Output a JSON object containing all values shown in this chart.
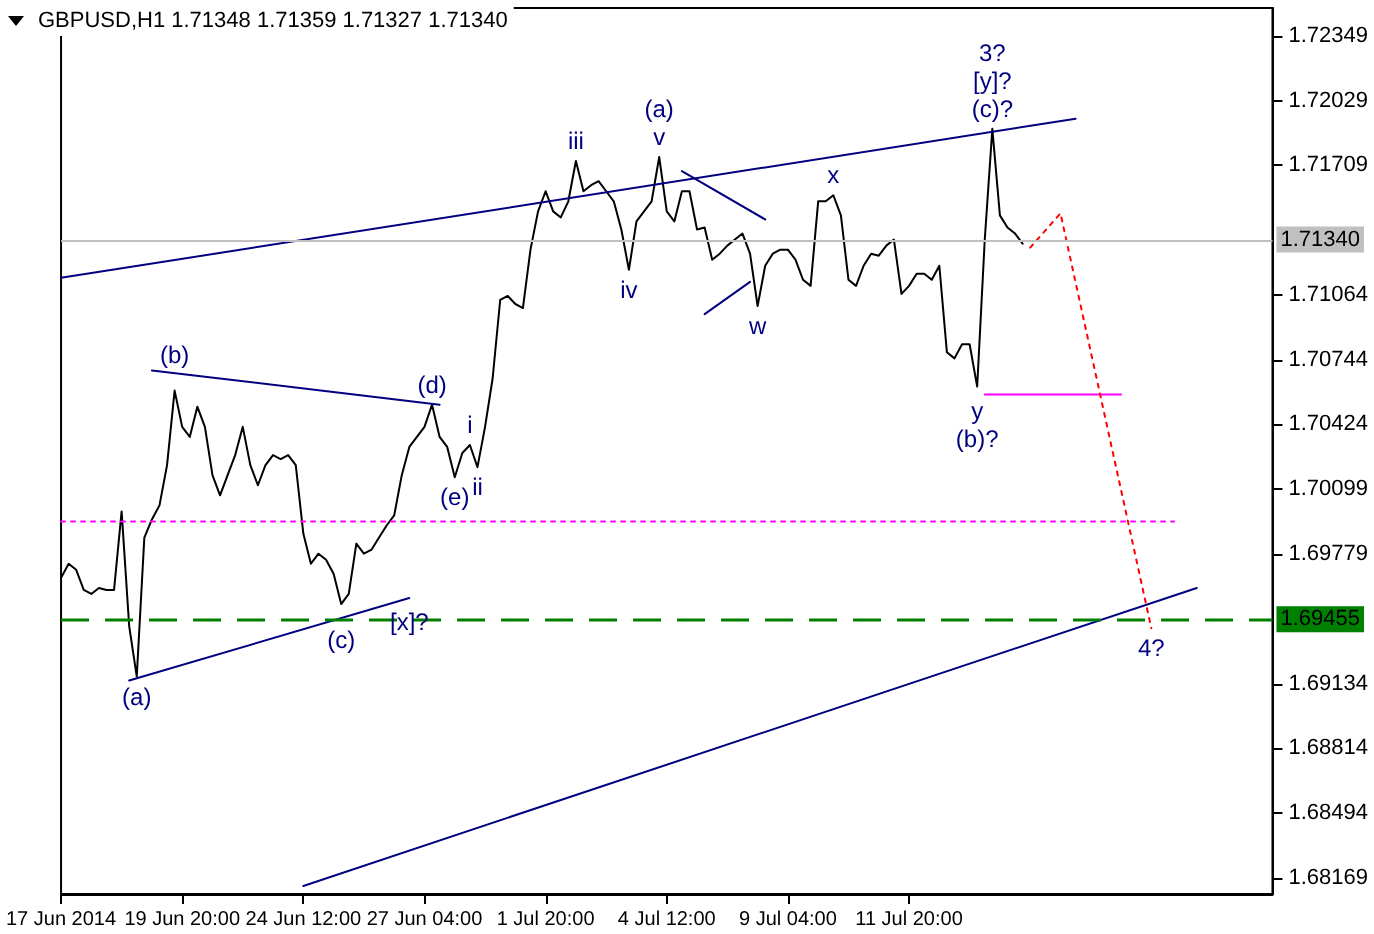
{
  "chart_data": {
    "type": "line",
    "title": "GBPUSD,H1 1.71348 1.71359 1.71327 1.71340",
    "marker": "none",
    "grid": false,
    "categories": [
      "17 Jun 2014",
      null,
      null,
      null,
      null,
      null,
      null,
      null,
      null,
      null,
      null,
      null,
      null,
      null,
      null,
      null,
      "19 Jun 20:00",
      null,
      null,
      null,
      null,
      null,
      null,
      null,
      null,
      null,
      null,
      null,
      null,
      null,
      null,
      null,
      "24 Jun 12:00",
      null,
      null,
      null,
      null,
      null,
      null,
      null,
      null,
      null,
      null,
      null,
      null,
      null,
      null,
      null,
      "27 Jun 04:00",
      null,
      null,
      null,
      null,
      null,
      null,
      null,
      null,
      null,
      null,
      null,
      null,
      null,
      null,
      null,
      "1 Jul 20:00",
      null,
      null,
      null,
      null,
      null,
      null,
      null,
      null,
      null,
      null,
      null,
      null,
      null,
      null,
      null,
      "4 Jul 12:00",
      null,
      null,
      null,
      null,
      null,
      null,
      null,
      null,
      null,
      null,
      null,
      null,
      null,
      null,
      null,
      "9 Jul 04:00",
      null,
      null,
      null,
      null,
      null,
      null,
      null,
      null,
      null,
      null,
      null,
      null,
      null,
      null,
      null,
      "11 Jul 20:00",
      null,
      null,
      null,
      null,
      null,
      null,
      null,
      null,
      null,
      null,
      null,
      null,
      null,
      null,
      null,
      null,
      null,
      null,
      null,
      null,
      null,
      null,
      null,
      null,
      null,
      null,
      null,
      null,
      null,
      null,
      null,
      null,
      null,
      null,
      null,
      null,
      null,
      null,
      null,
      null,
      null,
      null,
      null,
      null,
      null,
      null,
      null,
      null
    ],
    "ylim": [
      1.6809,
      1.7249
    ],
    "yticks": [
      1.72349,
      1.72029,
      1.71709,
      1.71064,
      1.70744,
      1.70424,
      1.70099,
      1.69779,
      1.69134,
      1.68814,
      1.68494,
      1.68169
    ],
    "series": [
      {
        "color": "#000000",
        "line_style": "solid",
        "values": [
          1.6966,
          1.6973,
          1.697,
          1.696,
          1.6958,
          1.6961,
          1.696,
          1.696,
          1.6999,
          1.6942,
          1.6917,
          1.6986,
          1.6995,
          1.7002,
          1.7022,
          1.7059,
          1.7041,
          1.7036,
          1.7051,
          1.7041,
          1.7017,
          1.7007,
          1.7017,
          1.7027,
          1.7041,
          1.7022,
          1.7012,
          1.7022,
          1.7027,
          1.7025,
          1.7027,
          1.7022,
          1.6988,
          1.6973,
          1.6978,
          1.6975,
          1.6968,
          1.6953,
          1.6958,
          1.6983,
          1.6978,
          1.698,
          1.6986,
          1.6992,
          1.6997,
          1.7017,
          1.7031,
          1.7036,
          1.7041,
          1.7052,
          1.7036,
          1.7031,
          1.7016,
          1.7028,
          1.7032,
          1.7021,
          1.7041,
          1.7065,
          1.7104,
          1.7106,
          1.7102,
          1.71,
          1.7129,
          1.7148,
          1.7158,
          1.7148,
          1.7145,
          1.7153,
          1.7173,
          1.7158,
          1.7161,
          1.7163,
          1.7158,
          1.7153,
          1.7139,
          1.7119,
          1.7143,
          1.7148,
          1.7153,
          1.7175,
          1.7148,
          1.7143,
          1.7158,
          1.7158,
          1.7139,
          1.714,
          1.7124,
          1.7127,
          1.7131,
          1.7134,
          1.7137,
          1.7127,
          1.7101,
          1.7121,
          1.7127,
          1.7129,
          1.7129,
          1.7124,
          1.7114,
          1.7111,
          1.7153,
          1.7153,
          1.7156,
          1.7146,
          1.7114,
          1.7111,
          1.7121,
          1.7127,
          1.7126,
          1.7131,
          1.7134,
          1.7107,
          1.7111,
          1.7117,
          1.7117,
          1.7114,
          1.7121,
          1.7078,
          1.7075,
          1.7082,
          1.7082,
          1.7061,
          1.7134,
          1.7189,
          1.7146,
          1.714,
          1.7137,
          1.7132,
          null,
          null,
          null,
          null,
          null,
          null,
          null,
          null,
          null,
          null,
          null,
          null,
          null,
          null,
          null,
          null,
          null,
          null,
          null,
          null,
          null,
          null,
          null,
          null,
          null,
          null,
          null,
          null,
          null,
          null,
          null,
          null,
          null
        ]
      },
      {
        "color": "#000080",
        "line_style": "solid",
        "values": [
          1.7115,
          null,
          null,
          null,
          null,
          null,
          null,
          null,
          null,
          null,
          null,
          null,
          null,
          null,
          null,
          null,
          null,
          null,
          null,
          null,
          null,
          null,
          null,
          null,
          null,
          null,
          null,
          null,
          null,
          null,
          null,
          null,
          null,
          null,
          null,
          null,
          null,
          null,
          null,
          null,
          null,
          null,
          null,
          null,
          null,
          null,
          null,
          null,
          null,
          null,
          null,
          null,
          null,
          null,
          null,
          null,
          null,
          null,
          null,
          null,
          null,
          null,
          null,
          null,
          null,
          null,
          null,
          null,
          null,
          null,
          null,
          null,
          null,
          null,
          null,
          null,
          null,
          null,
          null,
          null,
          null,
          null,
          null,
          null,
          null,
          null,
          null,
          null,
          null,
          null,
          null,
          null,
          null,
          null,
          null,
          null,
          null,
          null,
          null,
          null,
          null,
          null,
          null,
          null,
          null,
          null,
          null,
          null,
          null,
          null,
          null,
          null,
          null,
          null,
          null,
          null,
          null,
          null,
          null,
          null,
          null,
          null,
          null,
          null,
          null,
          null,
          null,
          null,
          null,
          null,
          null,
          null,
          null,
          null,
          1.7194,
          null,
          null,
          null,
          null,
          null,
          null,
          null,
          null,
          null,
          null,
          null,
          null,
          null,
          null,
          null,
          null,
          null,
          null,
          null,
          null,
          null,
          null,
          null,
          null,
          null,
          null
        ]
      },
      {
        "color": "#000080",
        "line_style": "solid",
        "values": [
          null,
          null,
          null,
          null,
          null,
          null,
          null,
          null,
          null,
          null,
          null,
          null,
          null,
          null,
          null,
          null,
          null,
          null,
          null,
          null,
          null,
          null,
          null,
          null,
          null,
          null,
          null,
          null,
          null,
          null,
          null,
          null,
          1.6813,
          null,
          null,
          null,
          null,
          null,
          null,
          null,
          null,
          null,
          null,
          null,
          null,
          null,
          null,
          null,
          null,
          null,
          null,
          null,
          null,
          null,
          null,
          null,
          null,
          null,
          null,
          null,
          null,
          null,
          null,
          null,
          null,
          null,
          null,
          null,
          null,
          null,
          null,
          null,
          null,
          null,
          null,
          null,
          null,
          null,
          null,
          null,
          null,
          null,
          null,
          null,
          null,
          null,
          null,
          null,
          null,
          null,
          null,
          null,
          null,
          null,
          null,
          null,
          null,
          null,
          null,
          null,
          null,
          null,
          null,
          null,
          null,
          null,
          null,
          null,
          null,
          null,
          null,
          null,
          null,
          null,
          null,
          null,
          null,
          null,
          null,
          null,
          null,
          null,
          null,
          null,
          null,
          null,
          null,
          null,
          null,
          null,
          null,
          null,
          null,
          null,
          null,
          null,
          null,
          null,
          null,
          null,
          null,
          null,
          null,
          null,
          null,
          null,
          null,
          null,
          null,
          null,
          1.6961,
          null,
          null,
          null,
          null,
          null,
          null,
          null,
          null,
          null,
          null
        ]
      },
      {
        "color": "#000080",
        "line_style": "solid",
        "values": [
          null,
          null,
          null,
          null,
          null,
          null,
          null,
          null,
          null,
          null,
          null,
          null,
          1.7069,
          null,
          null,
          null,
          null,
          null,
          null,
          null,
          null,
          null,
          null,
          null,
          null,
          null,
          null,
          null,
          null,
          null,
          null,
          null,
          null,
          null,
          null,
          null,
          null,
          null,
          null,
          null,
          null,
          null,
          null,
          null,
          null,
          null,
          null,
          null,
          null,
          null,
          1.7052,
          null,
          null,
          null,
          null,
          null,
          null,
          null,
          null,
          null,
          null,
          null,
          null,
          null,
          null,
          null,
          null,
          null,
          null,
          null,
          null,
          null,
          null,
          null,
          null,
          null,
          null,
          null,
          null,
          null,
          null,
          null,
          null,
          null,
          null,
          null,
          null,
          null,
          null,
          null,
          null,
          null,
          null,
          null,
          null,
          null,
          null,
          null,
          null,
          null,
          null,
          null,
          null,
          null,
          null,
          null,
          null,
          null,
          null,
          null,
          null,
          null,
          null,
          null,
          null,
          null,
          null,
          null,
          null,
          null,
          null,
          null,
          null,
          null,
          null,
          null,
          null,
          null,
          null,
          null,
          null,
          null,
          null,
          null,
          null,
          null,
          null,
          null,
          null,
          null,
          null,
          null,
          null,
          null,
          null,
          null,
          null,
          null,
          null,
          null,
          null,
          null,
          null,
          null,
          null,
          null,
          null,
          null,
          null,
          null,
          null
        ]
      },
      {
        "color": "#000080",
        "line_style": "solid",
        "values": [
          null,
          null,
          null,
          null,
          null,
          null,
          null,
          null,
          null,
          1.6915,
          null,
          null,
          null,
          null,
          null,
          null,
          null,
          null,
          null,
          null,
          null,
          null,
          null,
          null,
          null,
          null,
          null,
          null,
          null,
          null,
          null,
          null,
          null,
          null,
          null,
          null,
          null,
          null,
          null,
          null,
          null,
          null,
          null,
          null,
          null,
          null,
          1.6956,
          null,
          null,
          null,
          null,
          null,
          null,
          null,
          null,
          null,
          null,
          null,
          null,
          null,
          null,
          null,
          null,
          null,
          null,
          null,
          null,
          null,
          null,
          null,
          null,
          null,
          null,
          null,
          null,
          null,
          null,
          null,
          null,
          null,
          null,
          null,
          null,
          null,
          null,
          null,
          null,
          null,
          null,
          null,
          null,
          null,
          null,
          null,
          null,
          null,
          null,
          null,
          null,
          null,
          null,
          null,
          null,
          null,
          null,
          null,
          null,
          null,
          null,
          null,
          null,
          null,
          null,
          null,
          null,
          null,
          null,
          null,
          null,
          null,
          null,
          null,
          null,
          null,
          null,
          null,
          null,
          null,
          null,
          null,
          null,
          null,
          null,
          null,
          null,
          null,
          null,
          null,
          null,
          null,
          null,
          null,
          null,
          null,
          null,
          null,
          null,
          null,
          null,
          null,
          null,
          null,
          null,
          null,
          null,
          null,
          null,
          null,
          null,
          null,
          null
        ]
      },
      {
        "color": "#000080",
        "line_style": "solid",
        "values": [
          null,
          null,
          null,
          null,
          null,
          null,
          null,
          null,
          null,
          null,
          null,
          null,
          null,
          null,
          null,
          null,
          null,
          null,
          null,
          null,
          null,
          null,
          null,
          null,
          null,
          null,
          null,
          null,
          null,
          null,
          null,
          null,
          null,
          null,
          null,
          null,
          null,
          null,
          null,
          null,
          null,
          null,
          null,
          null,
          null,
          null,
          null,
          null,
          null,
          null,
          null,
          null,
          null,
          null,
          null,
          null,
          null,
          null,
          null,
          null,
          null,
          null,
          null,
          null,
          null,
          null,
          null,
          null,
          null,
          null,
          null,
          null,
          null,
          null,
          null,
          null,
          null,
          null,
          null,
          null,
          null,
          null,
          1.7168,
          null,
          null,
          null,
          null,
          null,
          null,
          null,
          null,
          null,
          null,
          1.7144,
          null,
          null,
          null,
          null,
          null,
          null,
          null,
          null,
          null,
          null,
          null,
          null,
          null,
          null,
          null,
          null,
          null,
          null,
          null,
          null,
          null,
          null,
          null,
          null,
          null,
          null,
          null,
          null,
          null,
          null,
          null,
          null,
          null,
          null,
          null,
          null,
          null,
          null,
          null,
          null,
          null,
          null,
          null,
          null,
          null,
          null,
          null,
          null,
          null,
          null,
          null,
          null,
          null,
          null,
          null,
          null,
          null,
          null,
          null,
          null,
          null,
          null,
          null,
          null,
          null,
          null,
          null
        ]
      },
      {
        "color": "#000080",
        "line_style": "solid",
        "values": [
          null,
          null,
          null,
          null,
          null,
          null,
          null,
          null,
          null,
          null,
          null,
          null,
          null,
          null,
          null,
          null,
          null,
          null,
          null,
          null,
          null,
          null,
          null,
          null,
          null,
          null,
          null,
          null,
          null,
          null,
          null,
          null,
          null,
          null,
          null,
          null,
          null,
          null,
          null,
          null,
          null,
          null,
          null,
          null,
          null,
          null,
          null,
          null,
          null,
          null,
          null,
          null,
          null,
          null,
          null,
          null,
          null,
          null,
          null,
          null,
          null,
          null,
          null,
          null,
          null,
          null,
          null,
          null,
          null,
          null,
          null,
          null,
          null,
          null,
          null,
          null,
          null,
          null,
          null,
          null,
          null,
          null,
          null,
          null,
          null,
          1.7097,
          null,
          null,
          null,
          null,
          null,
          1.7113,
          null,
          null,
          null,
          null,
          null,
          null,
          null,
          null,
          null,
          null,
          null,
          null,
          null,
          null,
          null,
          null,
          null,
          null,
          null,
          null,
          null,
          null,
          null,
          null,
          null,
          null,
          null,
          null,
          null,
          null,
          null,
          null,
          null,
          null,
          null,
          null,
          null,
          null,
          null,
          null,
          null,
          null,
          null,
          null,
          null,
          null,
          null,
          null,
          null,
          null,
          null,
          null,
          null,
          null,
          null,
          null,
          null,
          null,
          null,
          null,
          null,
          null,
          null,
          null,
          null,
          null,
          null,
          null,
          null
        ]
      },
      {
        "color": "#ff00ff",
        "line_style": "solid",
        "values": [
          null,
          null,
          null,
          null,
          null,
          null,
          null,
          null,
          null,
          null,
          null,
          null,
          null,
          null,
          null,
          null,
          null,
          null,
          null,
          null,
          null,
          null,
          null,
          null,
          null,
          null,
          null,
          null,
          null,
          null,
          null,
          null,
          null,
          null,
          null,
          null,
          null,
          null,
          null,
          null,
          null,
          null,
          null,
          null,
          null,
          null,
          null,
          null,
          null,
          null,
          null,
          null,
          null,
          null,
          null,
          null,
          null,
          null,
          null,
          null,
          null,
          null,
          null,
          null,
          null,
          null,
          null,
          null,
          null,
          null,
          null,
          null,
          null,
          null,
          null,
          null,
          null,
          null,
          null,
          null,
          null,
          null,
          null,
          null,
          null,
          null,
          null,
          null,
          null,
          null,
          null,
          null,
          null,
          null,
          null,
          null,
          null,
          null,
          null,
          null,
          null,
          null,
          null,
          null,
          null,
          null,
          null,
          null,
          null,
          null,
          null,
          null,
          null,
          null,
          null,
          null,
          null,
          null,
          null,
          null,
          null,
          null,
          1.7057,
          null,
          null,
          null,
          null,
          null,
          null,
          null,
          null,
          null,
          null,
          null,
          null,
          null,
          null,
          null,
          null,
          null,
          1.7057,
          null,
          null,
          null,
          null,
          null,
          null,
          null,
          null,
          null,
          null,
          null,
          null,
          null,
          null,
          null,
          null,
          null,
          null,
          null,
          null
        ]
      },
      {
        "color": "#ff00ff",
        "line_style": "dotted",
        "values": [
          1.6994,
          null,
          null,
          null,
          null,
          null,
          null,
          null,
          null,
          null,
          null,
          null,
          null,
          null,
          null,
          null,
          null,
          null,
          null,
          null,
          null,
          null,
          null,
          null,
          null,
          null,
          null,
          null,
          null,
          null,
          null,
          null,
          null,
          null,
          null,
          null,
          null,
          null,
          null,
          null,
          null,
          null,
          null,
          null,
          null,
          null,
          null,
          null,
          null,
          null,
          null,
          null,
          null,
          null,
          null,
          null,
          null,
          null,
          null,
          null,
          null,
          null,
          null,
          null,
          null,
          null,
          null,
          null,
          null,
          null,
          null,
          null,
          null,
          null,
          null,
          null,
          null,
          null,
          null,
          null,
          null,
          null,
          null,
          null,
          null,
          null,
          null,
          null,
          null,
          null,
          null,
          null,
          null,
          null,
          null,
          null,
          null,
          null,
          null,
          null,
          null,
          null,
          null,
          null,
          null,
          null,
          null,
          null,
          null,
          null,
          null,
          null,
          null,
          null,
          null,
          null,
          null,
          null,
          null,
          null,
          null,
          null,
          null,
          null,
          null,
          null,
          null,
          null,
          null,
          null,
          null,
          null,
          null,
          null,
          null,
          null,
          null,
          null,
          null,
          null,
          null,
          null,
          null,
          null,
          null,
          null,
          null,
          1.6994,
          null,
          null,
          null,
          null,
          null,
          null,
          null,
          null,
          null,
          null,
          null,
          null,
          null
        ]
      },
      {
        "color": "#ff0000",
        "line_style": "dotted",
        "values": [
          null,
          null,
          null,
          null,
          null,
          null,
          null,
          null,
          null,
          null,
          null,
          null,
          null,
          null,
          null,
          null,
          null,
          null,
          null,
          null,
          null,
          null,
          null,
          null,
          null,
          null,
          null,
          null,
          null,
          null,
          null,
          null,
          null,
          null,
          null,
          null,
          null,
          null,
          null,
          null,
          null,
          null,
          null,
          null,
          null,
          null,
          null,
          null,
          null,
          null,
          null,
          null,
          null,
          null,
          null,
          null,
          null,
          null,
          null,
          null,
          null,
          null,
          null,
          null,
          null,
          null,
          null,
          null,
          null,
          null,
          null,
          null,
          null,
          null,
          null,
          null,
          null,
          null,
          null,
          null,
          null,
          null,
          null,
          null,
          null,
          null,
          null,
          null,
          null,
          null,
          null,
          null,
          null,
          null,
          null,
          null,
          null,
          null,
          null,
          null,
          null,
          null,
          null,
          null,
          null,
          null,
          null,
          null,
          null,
          null,
          null,
          null,
          null,
          null,
          null,
          null,
          null,
          null,
          null,
          null,
          null,
          null,
          null,
          null,
          null,
          null,
          null,
          null,
          1.713,
          null,
          null,
          null,
          1.7147,
          null,
          null,
          null,
          null,
          null,
          null,
          null,
          null,
          null,
          null,
          null,
          1.6941,
          null,
          null,
          null,
          null,
          null,
          null,
          null,
          null,
          null,
          null,
          null,
          null,
          null,
          null,
          null,
          null
        ]
      }
    ],
    "ref_lines": [
      {
        "axis": "y",
        "value": 1.7134,
        "label": "1.71340",
        "color": "#c0c0c0",
        "line_style": "solid"
      },
      {
        "axis": "y",
        "value": 1.69455,
        "label": "1.69455",
        "color": "#008000",
        "line_style": "dashed"
      }
    ],
    "annotations": [
      {
        "text": "(a)",
        "y": 1.6917
      },
      {
        "text": "(b)",
        "y": 1.7059
      },
      {
        "text": "(c)",
        "y": 1.6953
      },
      {
        "text": "(d)",
        "y": 1.7052
      },
      {
        "text": "(e)",
        "y": 1.7016
      },
      {
        "text": "i",
        "y": 1.7032
      },
      {
        "text": "ii",
        "y": 1.7021
      },
      {
        "text": "iii",
        "y": 1.7173
      },
      {
        "text": "iv",
        "y": 1.7119
      },
      {
        "text": "(a)",
        "y": 1.7175
      },
      {
        "text": "v",
        "y": 1.7175
      },
      {
        "text": "w",
        "y": 1.7101
      },
      {
        "text": "x",
        "y": 1.7156
      },
      {
        "text": "y",
        "y": 1.7061
      },
      {
        "text": "(b)?",
        "y": 1.7061
      },
      {
        "text": "3?",
        "y": 1.7189
      },
      {
        "text": "[y]?",
        "y": 1.7189
      },
      {
        "text": "(c)?",
        "y": 1.7189
      },
      {
        "text": "[x]?",
        "y": 1.6956
      },
      {
        "text": "4?",
        "y": 1.6941
      }
    ]
  }
}
